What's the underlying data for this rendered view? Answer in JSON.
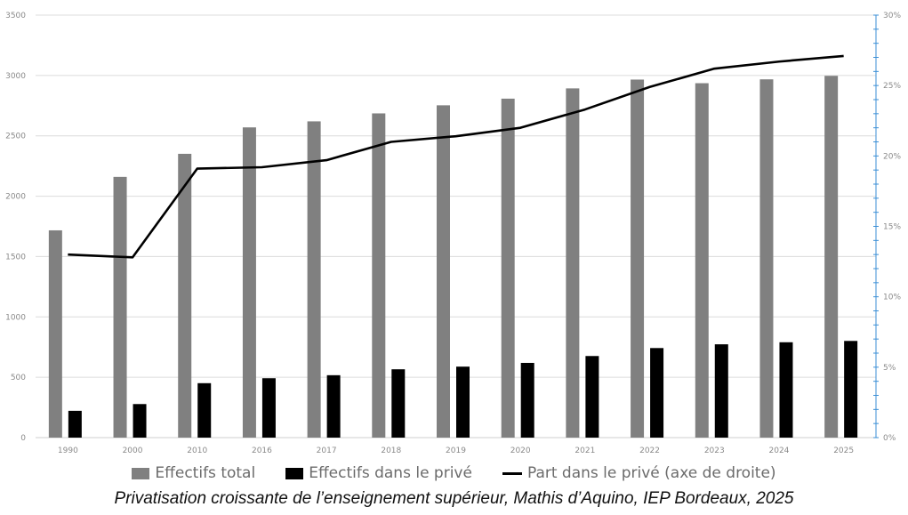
{
  "chart_data": {
    "type": "bar",
    "categories": [
      "1990",
      "2000",
      "2010",
      "2016",
      "2017",
      "2018",
      "2019",
      "2020",
      "2021",
      "2022",
      "2023",
      "2024",
      "2025"
    ],
    "series": [
      {
        "name": "Effectifs total",
        "type": "bar",
        "axis": "left",
        "color": "#808080",
        "values": [
          1717,
          2160,
          2351,
          2570,
          2620,
          2686,
          2753,
          2808,
          2893,
          2966,
          2936,
          2968,
          2997
        ]
      },
      {
        "name": "Effectifs dans le privé",
        "type": "bar",
        "axis": "left",
        "color": "#000000",
        "values": [
          222,
          278,
          451,
          492,
          517,
          566,
          588,
          619,
          676,
          742,
          773,
          790,
          801
        ]
      },
      {
        "name": "Part dans le privé (axe de droite)",
        "type": "line",
        "axis": "right",
        "color": "#000000",
        "values": [
          13.0,
          12.8,
          19.1,
          19.2,
          19.7,
          21.0,
          21.4,
          22.0,
          23.3,
          24.9,
          26.2,
          26.7,
          27.1
        ]
      }
    ],
    "y_left": {
      "min": 0,
      "max": 3500,
      "step": 500,
      "ticks": [
        "0",
        "500",
        "1000",
        "1500",
        "2000",
        "2500",
        "3000",
        "3500"
      ]
    },
    "y_right": {
      "min": 0,
      "max": 30,
      "step": 5,
      "ticks": [
        "0%",
        "5%",
        "10%",
        "15%",
        "20%",
        "25%",
        "30%"
      ]
    },
    "grid": true,
    "legend_position": "bottom",
    "caption": "Privatisation croissante de l’enseignement supérieur, Mathis d’Aquino, IEP Bordeaux, 2025"
  },
  "legend": {
    "total": "Effectifs total",
    "prive": "Effectifs dans le privé",
    "part": "Part dans le privé (axe de droite)"
  },
  "colors": {
    "total": "#808080",
    "prive": "#000000",
    "grid": "#dcdcdc",
    "right_axis": "#3b8fd6"
  }
}
